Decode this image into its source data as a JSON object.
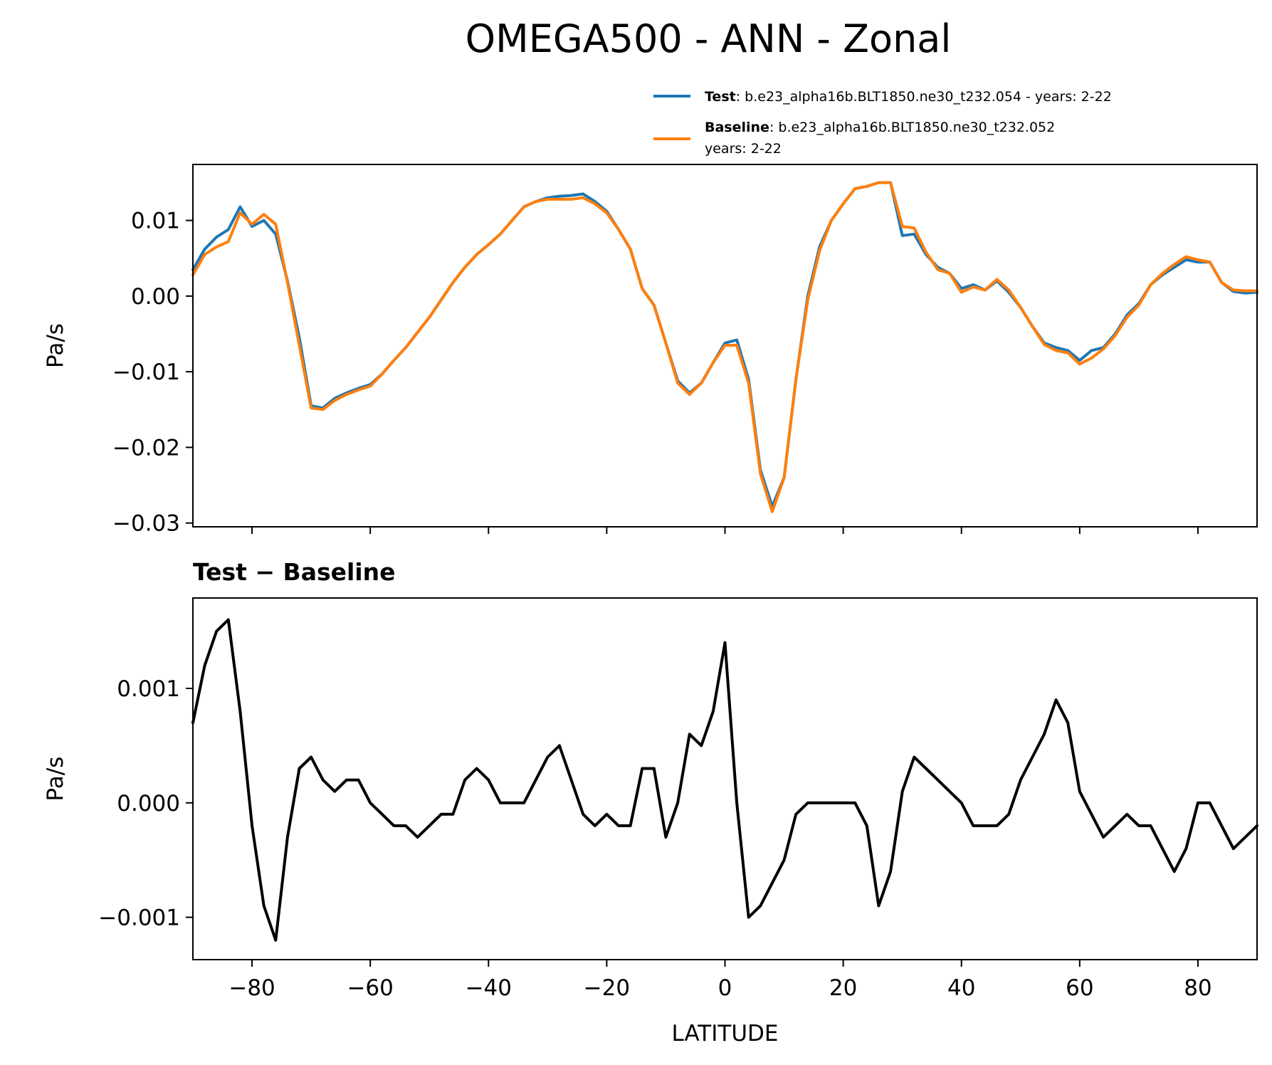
{
  "title": "OMEGA500 - ANN - Zonal",
  "legend": {
    "test": {
      "name": "Test",
      "text": ": b.e23_alpha16b.BLT1850.ne30_t232.054 - years: 2-22",
      "color": "#1f77b4"
    },
    "baseline": {
      "name": "Baseline",
      "text": ": b.e23_alpha16b.BLT1850.ne30_t232.052",
      "text2": "years: 2-22",
      "color": "#ff7f0e"
    }
  },
  "chart_data": [
    {
      "type": "line",
      "id": "top",
      "ylabel": "Pa/s",
      "xlim": [
        -90,
        90
      ],
      "ylim": [
        -0.0305,
        0.0174
      ],
      "yticks": [
        0.01,
        0.0,
        -0.01,
        -0.02,
        -0.03
      ],
      "ytick_labels": [
        "0.01",
        "0.00",
        "−0.01",
        "−0.02",
        "−0.03"
      ],
      "xticks": [
        -80,
        -60,
        -40,
        -20,
        0,
        20,
        40,
        60,
        80
      ],
      "x": [
        -90,
        -88,
        -86,
        -84,
        -82,
        -80,
        -78,
        -76,
        -74,
        -72,
        -70,
        -68,
        -66,
        -64,
        -62,
        -60,
        -58,
        -56,
        -54,
        -52,
        -50,
        -48,
        -46,
        -44,
        -42,
        -40,
        -38,
        -36,
        -34,
        -32,
        -30,
        -28,
        -26,
        -24,
        -22,
        -20,
        -18,
        -16,
        -14,
        -12,
        -10,
        -8,
        -6,
        -4,
        -2,
        0,
        2,
        4,
        6,
        8,
        10,
        12,
        14,
        16,
        18,
        20,
        22,
        24,
        26,
        28,
        30,
        32,
        34,
        36,
        38,
        40,
        42,
        44,
        46,
        48,
        50,
        52,
        54,
        56,
        58,
        60,
        62,
        64,
        66,
        68,
        70,
        72,
        74,
        76,
        78,
        80,
        82,
        84,
        86,
        88,
        90
      ],
      "series": [
        {
          "name": "Test",
          "color": "#1f77b4",
          "values": [
            0.0035,
            0.0062,
            0.0078,
            0.0088,
            0.0118,
            0.0092,
            0.01,
            0.0082,
            0.002,
            -0.0055,
            -0.0145,
            -0.0148,
            -0.0135,
            -0.0128,
            -0.0122,
            -0.0117,
            -0.0103,
            -0.0085,
            -0.0068,
            -0.0048,
            -0.0028,
            -0.0005,
            0.0018,
            0.0038,
            0.0055,
            0.0068,
            0.0082,
            0.01,
            0.0118,
            0.0125,
            0.013,
            0.0132,
            0.0133,
            0.0135,
            0.0125,
            0.0112,
            0.0088,
            0.0062,
            0.001,
            -0.0012,
            -0.0062,
            -0.0112,
            -0.0128,
            -0.0115,
            -0.0088,
            -0.0062,
            -0.0058,
            -0.011,
            -0.023,
            -0.0278,
            -0.024,
            -0.011,
            0.0,
            0.0065,
            0.01,
            0.0122,
            0.0142,
            0.0145,
            0.015,
            0.015,
            0.008,
            0.0082,
            0.0055,
            0.0038,
            0.003,
            0.001,
            0.0015,
            0.0008,
            0.002,
            0.0005,
            -0.0015,
            -0.004,
            -0.0062,
            -0.0068,
            -0.0072,
            -0.0085,
            -0.0072,
            -0.0068,
            -0.005,
            -0.0025,
            -0.001,
            0.0015,
            0.0028,
            0.0038,
            0.0048,
            0.0045,
            0.0045,
            0.0018,
            0.0006,
            0.0004,
            0.0005
          ]
        },
        {
          "name": "Baseline",
          "color": "#ff7f0e",
          "values": [
            0.0028,
            0.0055,
            0.0065,
            0.0072,
            0.011,
            0.0095,
            0.0108,
            0.0095,
            0.0018,
            -0.0065,
            -0.0148,
            -0.015,
            -0.0138,
            -0.013,
            -0.0124,
            -0.0119,
            -0.0103,
            -0.0085,
            -0.0068,
            -0.0048,
            -0.0028,
            -0.0005,
            0.0018,
            0.0038,
            0.0055,
            0.0068,
            0.0082,
            0.01,
            0.0118,
            0.0125,
            0.0128,
            0.0128,
            0.0128,
            0.013,
            0.0122,
            0.011,
            0.0088,
            0.0062,
            0.001,
            -0.0012,
            -0.0062,
            -0.0115,
            -0.013,
            -0.0115,
            -0.0088,
            -0.0065,
            -0.0065,
            -0.0115,
            -0.0235,
            -0.0285,
            -0.024,
            -0.011,
            -0.0005,
            0.006,
            0.01,
            0.0122,
            0.0142,
            0.0145,
            0.015,
            0.015,
            0.0092,
            0.009,
            0.0058,
            0.0035,
            0.003,
            0.0005,
            0.0012,
            0.0008,
            0.0022,
            0.0008,
            -0.0015,
            -0.004,
            -0.0064,
            -0.0072,
            -0.0075,
            -0.009,
            -0.0082,
            -0.007,
            -0.0052,
            -0.0028,
            -0.0012,
            0.0015,
            0.003,
            0.0042,
            0.0052,
            0.0048,
            0.0045,
            0.0018,
            0.0008,
            0.0007,
            0.0007
          ]
        }
      ]
    },
    {
      "type": "line",
      "id": "bottom",
      "title": "Test − Baseline",
      "xlabel": "LATITUDE",
      "ylabel": "Pa/s",
      "xlim": [
        -90,
        90
      ],
      "ylim": [
        -0.00137,
        0.00179
      ],
      "yticks": [
        0.001,
        0.0,
        -0.001
      ],
      "ytick_labels": [
        "0.001",
        "0.000",
        "−0.001"
      ],
      "xticks": [
        -80,
        -60,
        -40,
        -20,
        0,
        20,
        40,
        60,
        80
      ],
      "xtick_labels": [
        "−80",
        "−60",
        "−40",
        "−20",
        "0",
        "20",
        "40",
        "60",
        "80"
      ],
      "x": [
        -90,
        -88,
        -86,
        -84,
        -82,
        -80,
        -78,
        -76,
        -74,
        -72,
        -70,
        -68,
        -66,
        -64,
        -62,
        -60,
        -58,
        -56,
        -54,
        -52,
        -50,
        -48,
        -46,
        -44,
        -42,
        -40,
        -38,
        -36,
        -34,
        -32,
        -30,
        -28,
        -26,
        -24,
        -22,
        -20,
        -18,
        -16,
        -14,
        -12,
        -10,
        -8,
        -6,
        -4,
        -2,
        0,
        2,
        4,
        6,
        8,
        10,
        12,
        14,
        16,
        18,
        20,
        22,
        24,
        26,
        28,
        30,
        32,
        34,
        36,
        38,
        40,
        42,
        44,
        46,
        48,
        50,
        52,
        54,
        56,
        58,
        60,
        62,
        64,
        66,
        68,
        70,
        72,
        74,
        76,
        78,
        80,
        82,
        84,
        86,
        88,
        90
      ],
      "series": [
        {
          "name": "Test − Baseline",
          "color": "#000000",
          "values": [
            0.0007,
            0.0012,
            0.0015,
            0.0016,
            0.0008,
            -0.0002,
            -0.0009,
            -0.0012,
            -0.0003,
            0.0003,
            0.0004,
            0.0002,
            0.0001,
            0.0002,
            0.0002,
            0.0,
            -0.0001,
            -0.0002,
            -0.0002,
            -0.0003,
            -0.0002,
            -0.0001,
            -0.0001,
            0.0002,
            0.0003,
            0.0002,
            0.0,
            0.0,
            0.0,
            0.0002,
            0.0004,
            0.0005,
            0.0002,
            -0.0001,
            -0.0002,
            -0.0001,
            -0.0002,
            -0.0002,
            0.0003,
            0.0003,
            -0.0003,
            0.0,
            0.0006,
            0.0005,
            0.0008,
            0.0014,
            0.0,
            -0.001,
            -0.0009,
            -0.0007,
            -0.0005,
            -0.0001,
            0.0,
            0.0,
            0.0,
            0.0,
            0.0,
            -0.0002,
            -0.0009,
            -0.0006,
            0.0001,
            0.0004,
            0.0003,
            0.0002,
            0.0001,
            0.0,
            -0.0002,
            -0.0002,
            -0.0002,
            -0.0001,
            0.0002,
            0.0004,
            0.0006,
            0.0009,
            0.0007,
            0.0001,
            -0.0001,
            -0.0003,
            -0.0002,
            -0.0001,
            -0.0002,
            -0.0002,
            -0.0004,
            -0.0006,
            -0.0004,
            0.0,
            0.0,
            -0.0002,
            -0.0004,
            -0.0003,
            -0.0002
          ]
        }
      ]
    }
  ]
}
